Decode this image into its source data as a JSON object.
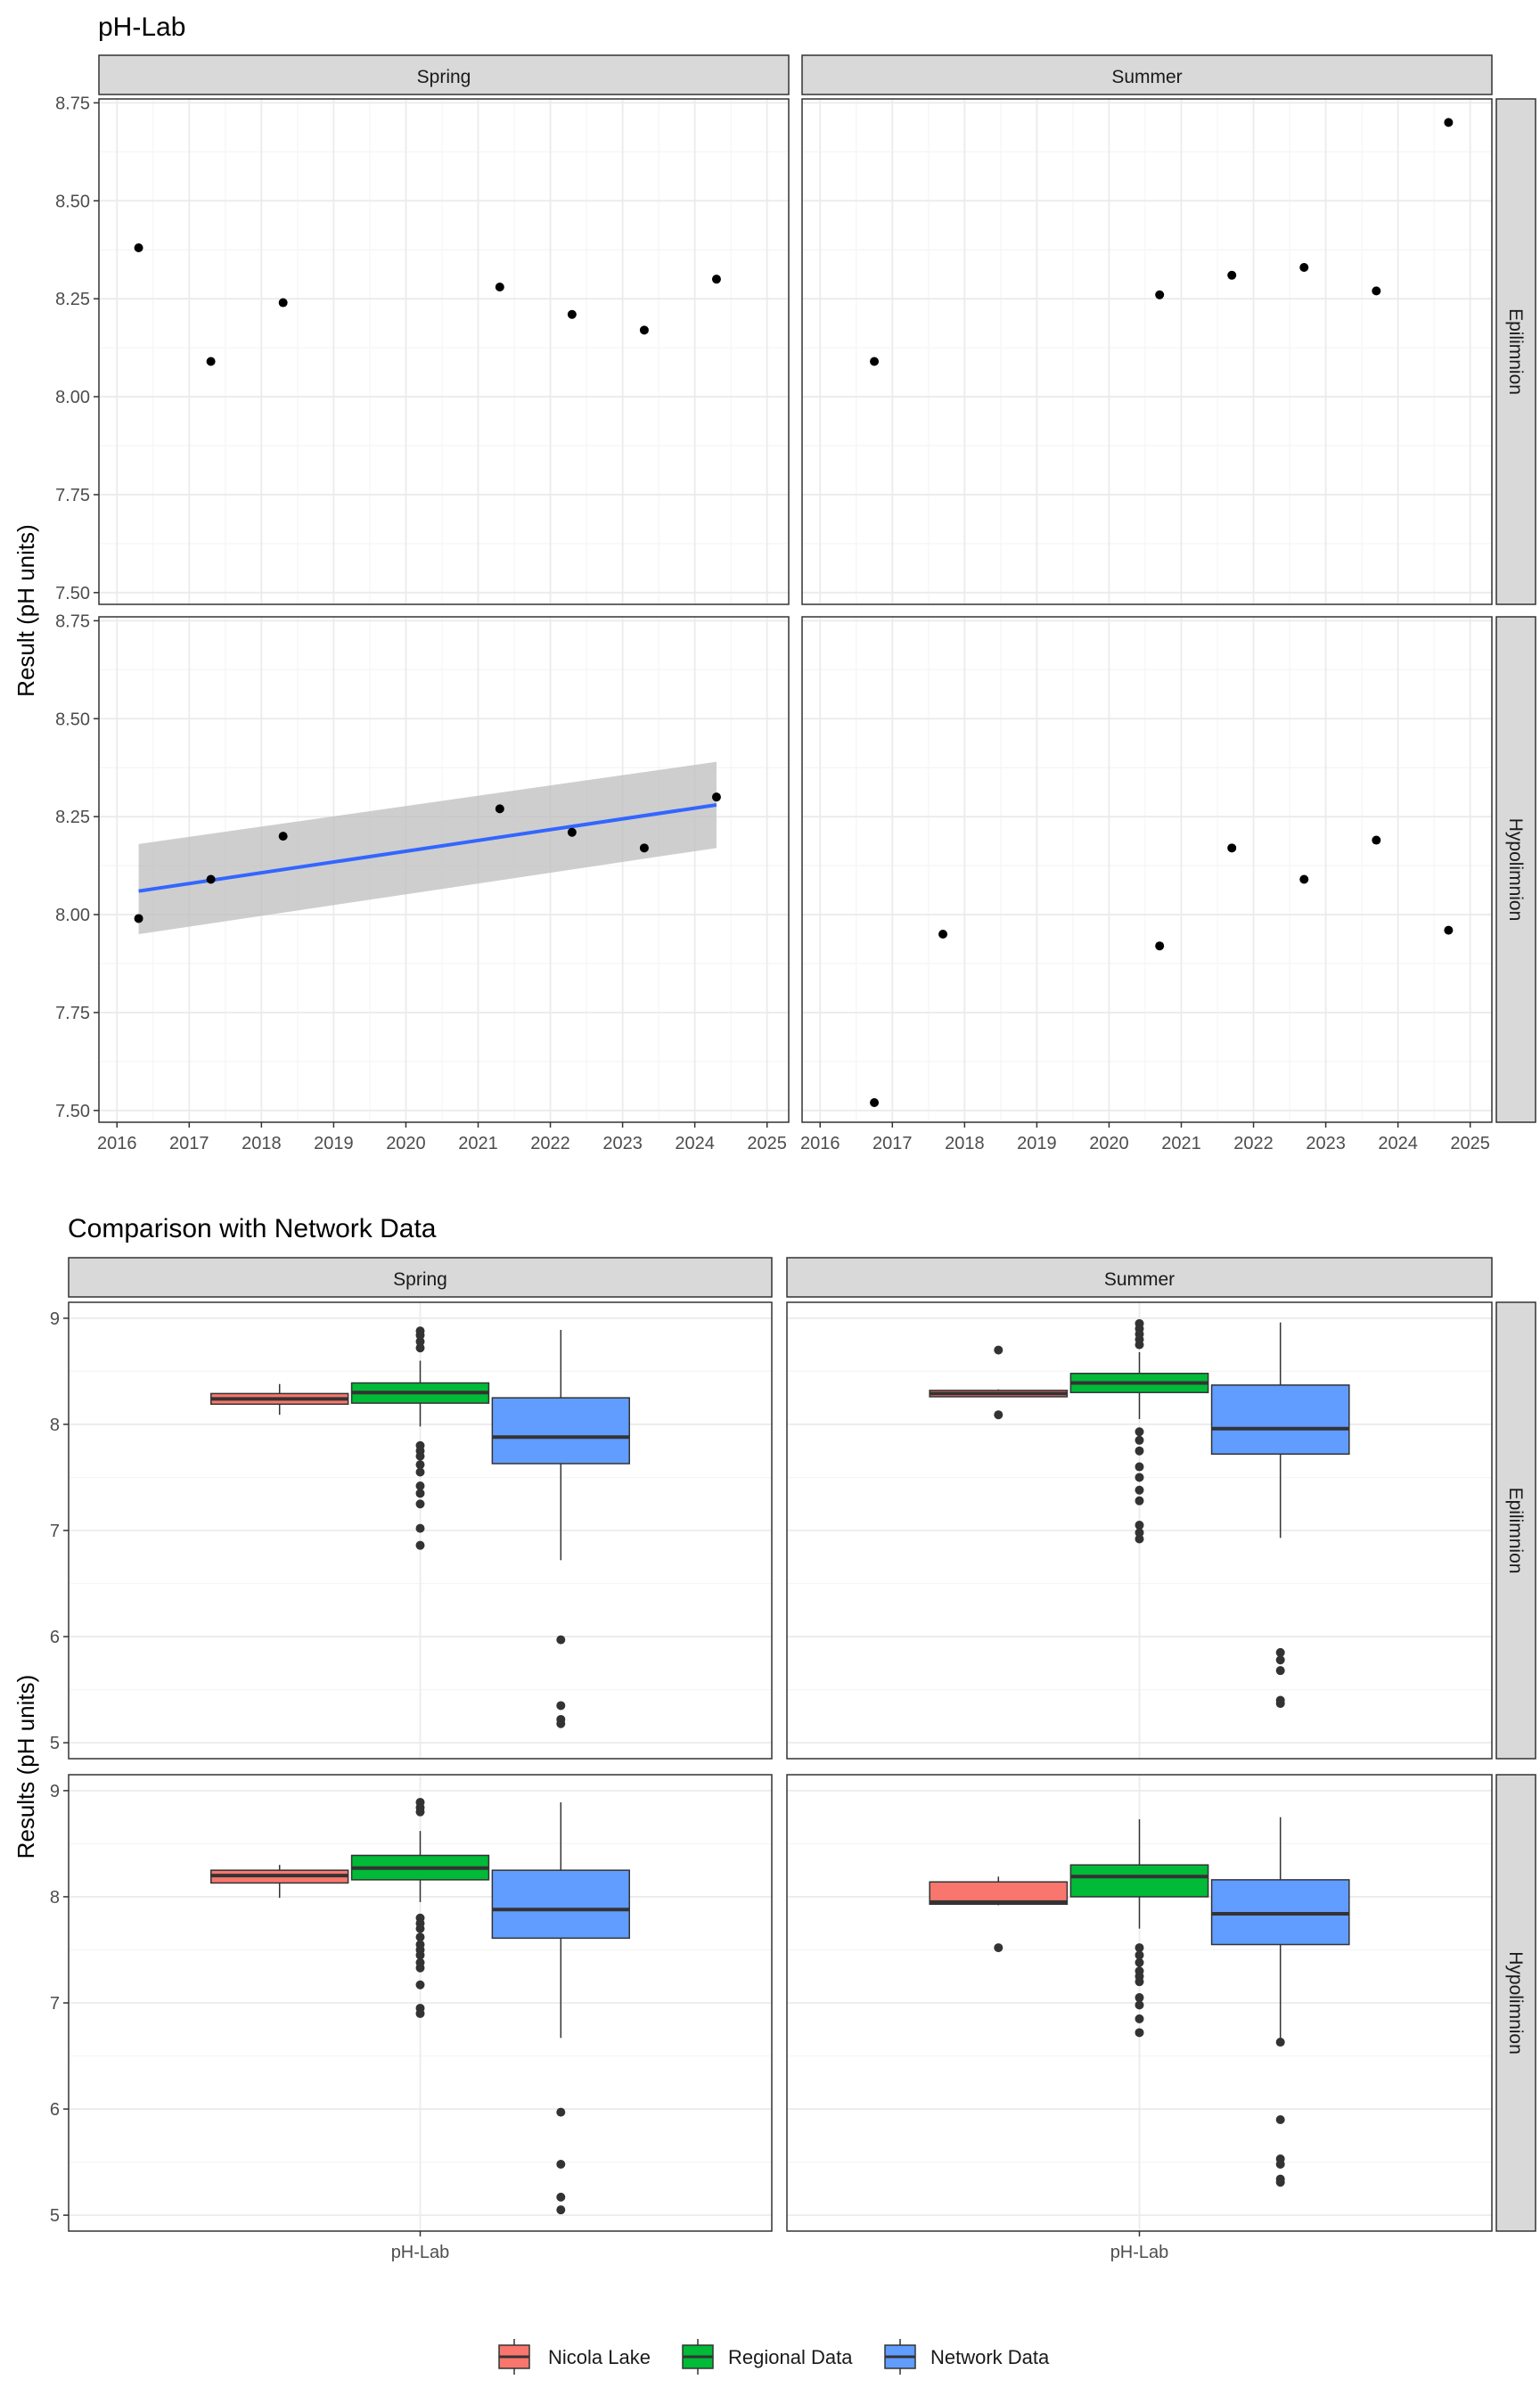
{
  "chart_data": [
    {
      "type": "scatter",
      "title": "pH-Lab",
      "ylabel": "Result (pH units)",
      "xlabel": "",
      "xlim": [
        2015.75,
        2025.3
      ],
      "ylim": [
        7.47,
        8.76
      ],
      "xticks": [
        2016,
        2017,
        2018,
        2019,
        2020,
        2021,
        2022,
        2023,
        2024,
        2025
      ],
      "yticks": [
        7.5,
        7.75,
        8.0,
        8.25,
        8.5,
        8.75
      ],
      "ytick_labels": [
        "7.50",
        "7.75",
        "8.00",
        "8.25",
        "8.50",
        "8.75"
      ],
      "columns": [
        "Spring",
        "Summer"
      ],
      "rows": [
        "Epilimnion",
        "Hypolimnion"
      ],
      "grid": true,
      "panels": [
        {
          "col": "Spring",
          "row": "Epilimnion",
          "points": [
            [
              2016.3,
              8.38
            ],
            [
              2017.3,
              8.09
            ],
            [
              2018.3,
              8.24
            ],
            [
              2021.3,
              8.28
            ],
            [
              2022.3,
              8.21
            ],
            [
              2023.3,
              8.17
            ],
            [
              2024.3,
              8.3
            ]
          ]
        },
        {
          "col": "Summer",
          "row": "Epilimnion",
          "points": [
            [
              2016.75,
              8.09
            ],
            [
              2020.7,
              8.26
            ],
            [
              2021.7,
              8.31
            ],
            [
              2022.7,
              8.33
            ],
            [
              2023.7,
              8.27
            ],
            [
              2024.7,
              8.7
            ]
          ]
        },
        {
          "col": "Spring",
          "row": "Hypolimnion",
          "points": [
            [
              2016.3,
              7.99
            ],
            [
              2017.3,
              8.09
            ],
            [
              2018.3,
              8.2
            ],
            [
              2021.3,
              8.27
            ],
            [
              2022.3,
              8.21
            ],
            [
              2023.3,
              8.17
            ],
            [
              2024.3,
              8.3
            ]
          ],
          "trend": {
            "x": [
              2016.3,
              2024.3
            ],
            "y": [
              8.06,
              8.28
            ],
            "band_lower": [
              7.95,
              8.17
            ],
            "band_upper": [
              8.18,
              8.39
            ],
            "color": "#3366FF",
            "band_color": "#BDBDBD"
          }
        },
        {
          "col": "Summer",
          "row": "Hypolimnion",
          "points": [
            [
              2016.75,
              7.52
            ],
            [
              2017.7,
              7.95
            ],
            [
              2020.7,
              7.92
            ],
            [
              2021.7,
              8.17
            ],
            [
              2022.7,
              8.09
            ],
            [
              2023.7,
              8.19
            ],
            [
              2024.7,
              7.96
            ]
          ]
        }
      ]
    },
    {
      "type": "box",
      "title": "Comparison with Network Data",
      "ylabel": "Results (pH units)",
      "xlabel": "",
      "category": "pH-Lab",
      "ylim": [
        4.85,
        9.15
      ],
      "yticks": [
        5,
        6,
        7,
        8,
        9
      ],
      "columns": [
        "Spring",
        "Summer"
      ],
      "rows": [
        "Epilimnion",
        "Hypolimnion"
      ],
      "legend": {
        "position": "bottom",
        "entries": [
          "Nicola Lake",
          "Regional Data",
          "Network Data"
        ]
      },
      "series_colors": {
        "Nicola Lake": "#F8766D",
        "Regional Data": "#00BA38",
        "Network Data": "#619CFF"
      },
      "panels": [
        {
          "col": "Spring",
          "row": "Epilimnion",
          "boxes": [
            {
              "series": "Nicola Lake",
              "whisker_low": 8.09,
              "q1": 8.19,
              "median": 8.24,
              "q3": 8.29,
              "whisker_high": 8.38,
              "outliers": []
            },
            {
              "series": "Regional Data",
              "whisker_low": 7.98,
              "q1": 8.2,
              "median": 8.3,
              "q3": 8.39,
              "whisker_high": 8.6,
              "outliers": [
                8.72,
                8.78,
                8.84,
                8.88,
                7.8,
                7.75,
                7.7,
                7.62,
                7.55,
                7.42,
                7.35,
                7.25,
                7.02,
                6.86
              ]
            },
            {
              "series": "Network Data",
              "whisker_low": 6.72,
              "q1": 7.63,
              "median": 7.88,
              "q3": 8.25,
              "whisker_high": 8.89,
              "outliers": [
                5.97,
                5.35,
                5.22,
                5.18
              ]
            }
          ]
        },
        {
          "col": "Summer",
          "row": "Epilimnion",
          "boxes": [
            {
              "series": "Nicola Lake",
              "whisker_low": 8.26,
              "q1": 8.26,
              "median": 8.29,
              "q3": 8.32,
              "whisker_high": 8.33,
              "outliers": [
                8.7,
                8.09
              ]
            },
            {
              "series": "Regional Data",
              "whisker_low": 8.05,
              "q1": 8.3,
              "median": 8.39,
              "q3": 8.48,
              "whisker_high": 8.68,
              "outliers": [
                8.75,
                8.8,
                8.85,
                8.9,
                8.95,
                7.93,
                7.85,
                7.75,
                7.6,
                7.5,
                7.38,
                7.28,
                7.05,
                6.98,
                6.92
              ]
            },
            {
              "series": "Network Data",
              "whisker_low": 6.93,
              "q1": 7.72,
              "median": 7.96,
              "q3": 8.37,
              "whisker_high": 8.96,
              "outliers": [
                5.85,
                5.78,
                5.68,
                5.4,
                5.37
              ]
            }
          ]
        },
        {
          "col": "Spring",
          "row": "Hypolimnion",
          "boxes": [
            {
              "series": "Nicola Lake",
              "whisker_low": 7.99,
              "q1": 8.13,
              "median": 8.2,
              "q3": 8.25,
              "whisker_high": 8.3,
              "outliers": []
            },
            {
              "series": "Regional Data",
              "whisker_low": 7.95,
              "q1": 8.16,
              "median": 8.27,
              "q3": 8.39,
              "whisker_high": 8.62,
              "outliers": [
                8.8,
                8.84,
                8.89,
                7.8,
                7.75,
                7.7,
                7.62,
                7.55,
                7.5,
                7.45,
                7.38,
                7.33,
                7.17,
                6.95,
                6.9
              ]
            },
            {
              "series": "Network Data",
              "whisker_low": 6.67,
              "q1": 7.61,
              "median": 7.88,
              "q3": 8.25,
              "whisker_high": 8.89,
              "outliers": [
                5.97,
                5.48,
                5.17,
                5.05
              ]
            }
          ]
        },
        {
          "col": "Summer",
          "row": "Hypolimnion",
          "boxes": [
            {
              "series": "Nicola Lake",
              "whisker_low": 7.92,
              "q1": 7.93,
              "median": 7.95,
              "q3": 8.14,
              "whisker_high": 8.19,
              "outliers": [
                7.52
              ]
            },
            {
              "series": "Regional Data",
              "whisker_low": 7.7,
              "q1": 8.0,
              "median": 8.19,
              "q3": 8.3,
              "whisker_high": 8.73,
              "outliers": [
                7.52,
                7.45,
                7.38,
                7.3,
                7.25,
                7.2,
                7.05,
                6.98,
                6.85,
                6.72
              ]
            },
            {
              "series": "Network Data",
              "whisker_low": 6.65,
              "q1": 7.55,
              "median": 7.84,
              "q3": 8.16,
              "whisker_high": 8.75,
              "outliers": [
                6.63,
                5.9,
                5.53,
                5.48,
                5.34,
                5.31
              ]
            }
          ]
        }
      ]
    }
  ]
}
